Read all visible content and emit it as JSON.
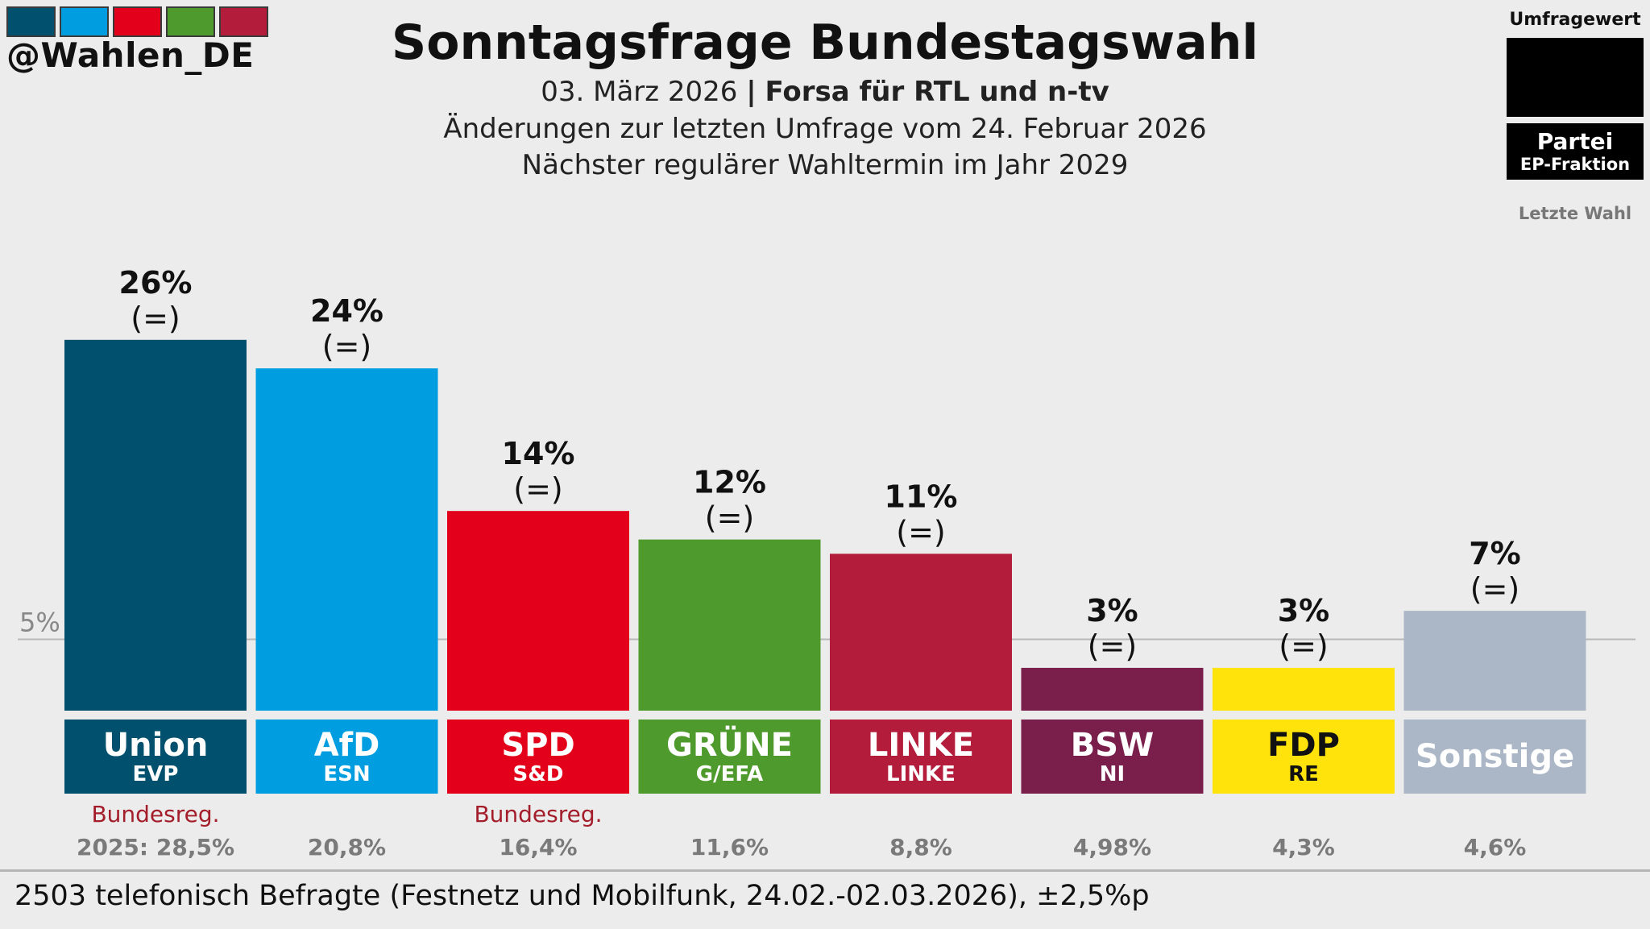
{
  "brand": {
    "handle": "@Wahlen_DE",
    "stripes": [
      "#00506e",
      "#009ee0",
      "#e3001b",
      "#4e9a2c",
      "#b31c3b"
    ]
  },
  "header": {
    "title": "Sonntagsfrage Bundestagswahl",
    "date": "03. März 2026",
    "separator": "|",
    "institute": "Forsa für RTL und n-tv",
    "change_note": "Änderungen zur letzten Umfrage vom 24. Februar 2026",
    "next_election": "Nächster regulärer Wahltermin im Jahr 2029"
  },
  "legend": {
    "poll_value": "Umfragewert",
    "party": "Partei",
    "ep_group": "EP-Fraktion",
    "last_election": "Letzte Wahl"
  },
  "chart_data": {
    "type": "bar",
    "title": "Sonntagsfrage Bundestagswahl",
    "threshold": {
      "value": 5,
      "label": "5%"
    },
    "ylim": [
      0,
      28
    ],
    "categories": [
      "Union",
      "AfD",
      "SPD",
      "GRÜNE",
      "LINKE",
      "BSW",
      "FDP",
      "Sonstige"
    ],
    "values": [
      26,
      24,
      14,
      12,
      11,
      3,
      3,
      7
    ],
    "value_labels": [
      "26%",
      "24%",
      "14%",
      "12%",
      "11%",
      "3%",
      "3%",
      "7%"
    ],
    "change_labels": [
      "(=)",
      "(=)",
      "(=)",
      "(=)",
      "(=)",
      "(=)",
      "(=)",
      "(=)"
    ],
    "ep_groups": [
      "EVP",
      "ESN",
      "S&D",
      "G/EFA",
      "LINKE",
      "NI",
      "RE",
      ""
    ],
    "government": [
      "Bundesreg.",
      "",
      "Bundesreg.",
      "",
      "",
      "",
      "",
      ""
    ],
    "last_election_labels": [
      "2025: 28,5%",
      "20,8%",
      "16,4%",
      "11,6%",
      "8,8%",
      "4,98%",
      "4,3%",
      "4,6%"
    ],
    "colors": [
      "#00506e",
      "#009ee0",
      "#e3001b",
      "#4e9a2c",
      "#b31c3b",
      "#7a1e4b",
      "#ffe30a",
      "#abb6c7"
    ],
    "label_text_colors": [
      "#ffffff",
      "#ffffff",
      "#ffffff",
      "#ffffff",
      "#ffffff",
      "#ffffff",
      "#111111",
      "#ffffff"
    ]
  },
  "footer": {
    "note": "2503 telefonisch Befragte (Festnetz und Mobilfunk, 24.02.-02.03.2026), ±2,5%p"
  }
}
